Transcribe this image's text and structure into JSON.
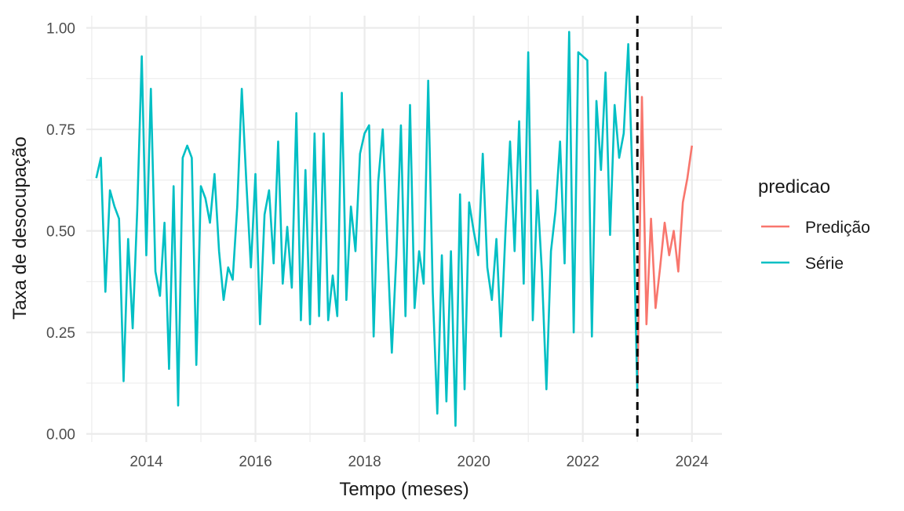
{
  "chart_data": {
    "type": "line",
    "xlabel": "Tempo (meses)",
    "ylabel": "Taxa de desocupação",
    "xlim": [
      2012.9,
      2024.55
    ],
    "ylim": [
      -0.02,
      1.03
    ],
    "x_ticks": [
      2014,
      2016,
      2018,
      2020,
      2022,
      2024
    ],
    "x_tick_labels": [
      "2014",
      "2016",
      "2018",
      "2020",
      "2022",
      "2024"
    ],
    "y_ticks": [
      0.0,
      0.25,
      0.5,
      0.75,
      1.0
    ],
    "y_tick_labels": [
      "0.00",
      "0.25",
      "0.50",
      "0.75",
      "1.00"
    ],
    "grid": true,
    "legend": {
      "title": "predicao",
      "position": "right"
    },
    "vline": {
      "x": 2023.0,
      "style": "dashed",
      "color": "#000000"
    },
    "series": [
      {
        "name": "Predição",
        "color": "#F8766D",
        "x_start": 2023.0,
        "x_step": 0.0833333,
        "values": [
          0.1,
          0.83,
          0.27,
          0.53,
          0.31,
          0.41,
          0.52,
          0.44,
          0.5,
          0.4,
          0.57,
          0.63,
          0.71
        ]
      },
      {
        "name": "Série",
        "color": "#00BFC4",
        "x_start": 2013.083,
        "x_step": 0.0833333,
        "values": [
          0.63,
          0.68,
          0.35,
          0.6,
          0.56,
          0.53,
          0.13,
          0.48,
          0.26,
          0.55,
          0.93,
          0.44,
          0.85,
          0.4,
          0.34,
          0.52,
          0.16,
          0.61,
          0.07,
          0.68,
          0.71,
          0.68,
          0.17,
          0.61,
          0.58,
          0.52,
          0.64,
          0.45,
          0.33,
          0.41,
          0.38,
          0.56,
          0.85,
          0.62,
          0.41,
          0.64,
          0.27,
          0.54,
          0.6,
          0.42,
          0.72,
          0.37,
          0.51,
          0.36,
          0.79,
          0.28,
          0.65,
          0.27,
          0.74,
          0.29,
          0.74,
          0.28,
          0.39,
          0.29,
          0.84,
          0.33,
          0.56,
          0.45,
          0.69,
          0.74,
          0.76,
          0.24,
          0.62,
          0.75,
          0.47,
          0.2,
          0.44,
          0.76,
          0.29,
          0.81,
          0.31,
          0.45,
          0.37,
          0.87,
          0.35,
          0.05,
          0.44,
          0.08,
          0.45,
          0.02,
          0.59,
          0.11,
          0.57,
          0.5,
          0.44,
          0.69,
          0.41,
          0.33,
          0.48,
          0.24,
          0.5,
          0.72,
          0.45,
          0.77,
          0.37,
          0.94,
          0.28,
          0.6,
          0.4,
          0.11,
          0.45,
          0.55,
          0.72,
          0.42,
          0.99,
          0.25,
          0.94,
          0.93,
          0.92,
          0.24,
          0.82,
          0.65,
          0.89,
          0.49,
          0.81,
          0.68,
          0.74,
          0.96,
          0.6,
          0.1
        ]
      }
    ]
  }
}
